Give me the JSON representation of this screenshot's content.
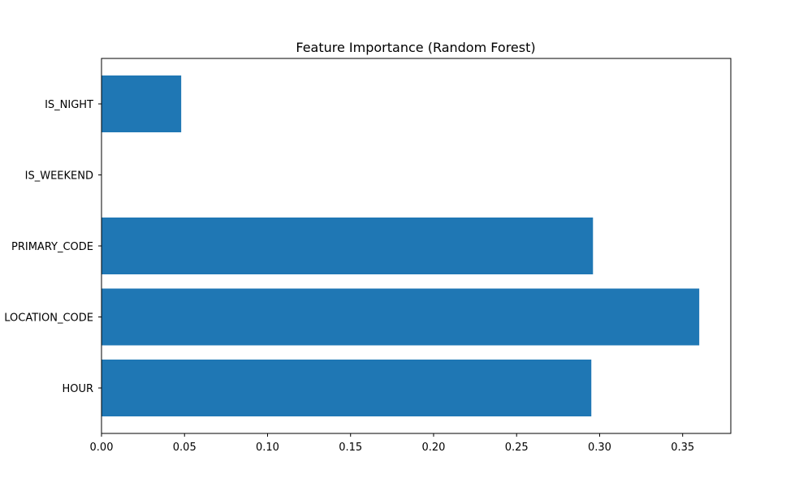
{
  "chart_data": {
    "type": "bar",
    "orientation": "horizontal",
    "title": "Feature Importance (Random Forest)",
    "xlabel": "",
    "ylabel": "",
    "categories": [
      "HOUR",
      "LOCATION_CODE",
      "PRIMARY_CODE",
      "IS_WEEKEND",
      "IS_NIGHT"
    ],
    "values": [
      0.295,
      0.36,
      0.296,
      0.0,
      0.048
    ],
    "xlim": [
      0,
      0.379
    ],
    "xticks": [
      "0.00",
      "0.05",
      "0.10",
      "0.15",
      "0.20",
      "0.25",
      "0.30",
      "0.35"
    ],
    "grid": false,
    "bar_color": "#1f77b4"
  }
}
